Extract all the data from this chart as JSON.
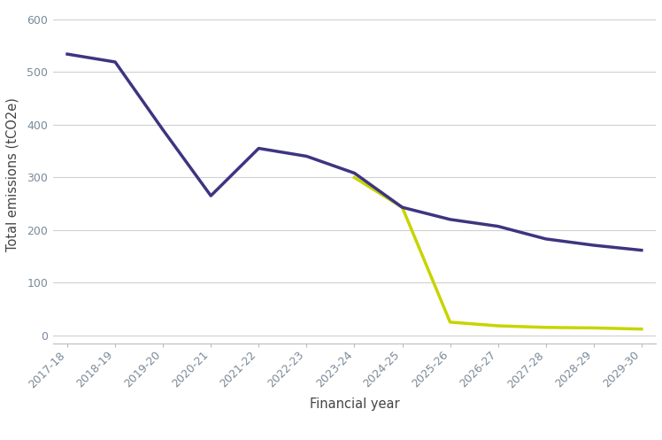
{
  "years": [
    "2017-18",
    "2018-19",
    "2019-20",
    "2020-21",
    "2021-22",
    "2022-23",
    "2023-24",
    "2024-25",
    "2025-26",
    "2026-27",
    "2027-28",
    "2028-29",
    "2029-30"
  ],
  "bau_values": [
    533.96,
    519.0,
    390.0,
    265.0,
    355.0,
    340.0,
    308.0,
    243.0,
    220.0,
    207.0,
    183.0,
    171.0,
    161.55
  ],
  "net_zero_values": [
    null,
    null,
    null,
    null,
    null,
    null,
    299.57,
    243.0,
    25.0,
    18.0,
    15.0,
    14.0,
    11.86
  ],
  "bau_color": "#3d3580",
  "net_zero_color": "#c8d400",
  "xlabel": "Financial year",
  "ylabel": "Total emissions (tCO2e)",
  "ylim": [
    -15,
    625
  ],
  "yticks": [
    0,
    100,
    200,
    300,
    400,
    500,
    600
  ],
  "background_color": "#ffffff",
  "grid_color": "#d0d0d0",
  "line_width": 2.5,
  "legend_fontsize": 10.5,
  "axis_label_fontsize": 10.5,
  "tick_fontsize": 9.0,
  "tick_color": "#7a8a99",
  "label_color": "#444444"
}
